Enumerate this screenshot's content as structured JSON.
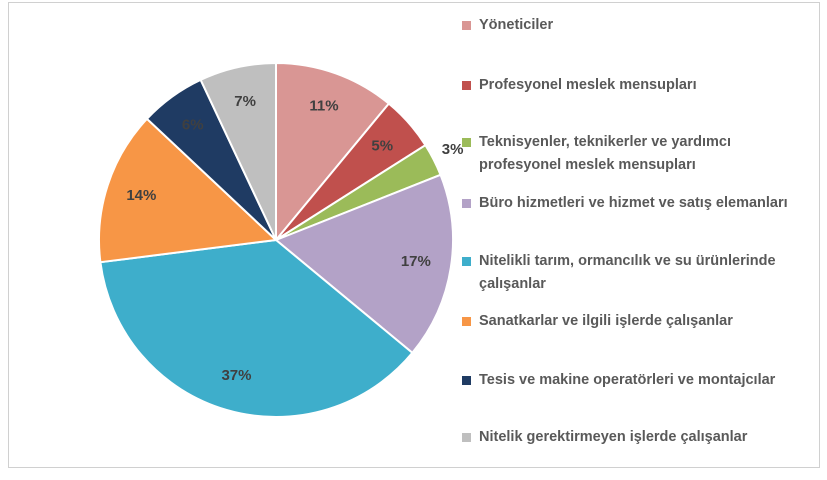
{
  "chart_data": {
    "type": "pie",
    "categories": [
      "Yöneticiler",
      "Profesyonel meslek mensupları",
      "Teknisyenler, teknikerler ve yardımcı profesyonel meslek mensupları",
      "Büro hizmetleri ve hizmet ve satış elemanları",
      "Nitelikli tarım, ormancılık ve su ürünlerinde çalışanlar",
      "Sanatkarlar ve ilgili işlerde çalışanlar",
      "Tesis ve makine operatörleri ve montajcılar",
      "Nitelik gerektirmeyen işlerde çalışanlar"
    ],
    "values": [
      11,
      5,
      3,
      17,
      37,
      14,
      6,
      7
    ],
    "value_labels": [
      "11%",
      "5%",
      "3%",
      "17%",
      "37%",
      "14%",
      "6%",
      "7%"
    ],
    "colors": [
      "#d99694",
      "#c0504d",
      "#9bbb59",
      "#b3a2c7",
      "#3eaecb",
      "#f79646",
      "#1f3b63",
      "#bfbfbf"
    ],
    "legend": "right"
  }
}
